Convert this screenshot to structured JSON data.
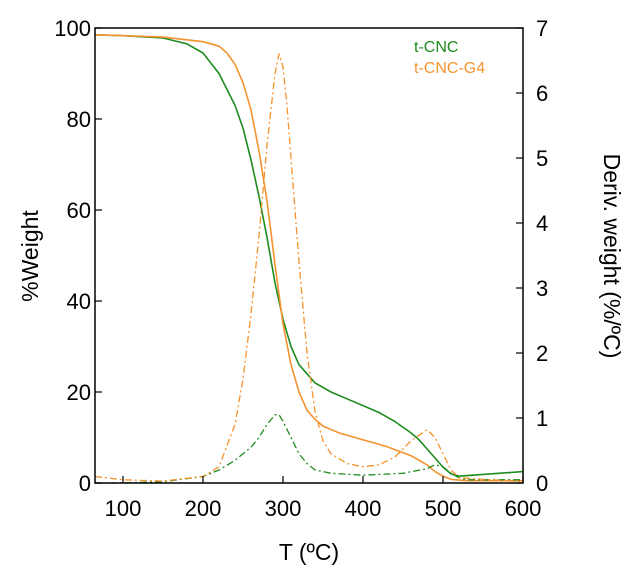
{
  "chart_data": {
    "type": "line",
    "xlabel": "T (ºC)",
    "ylabel": "%Weight",
    "y2label": "Deriv. weight (%/ºC)",
    "xlim": [
      65,
      600
    ],
    "ylim": [
      0,
      100
    ],
    "y2lim": [
      0,
      7
    ],
    "xticks": [
      100,
      200,
      300,
      400,
      500,
      600
    ],
    "yticks": [
      0,
      20,
      40,
      60,
      80,
      100
    ],
    "y2ticks": [
      0,
      1,
      2,
      3,
      4,
      5,
      6,
      7
    ],
    "grid": false,
    "legend": {
      "placement": "top-right",
      "entries": [
        {
          "label": "t-CNC",
          "color": "#1e8c1e"
        },
        {
          "label": "t-CNC-G4",
          "color": "#f5932e"
        }
      ]
    },
    "series": [
      {
        "name": "t-CNC",
        "axis": "left",
        "style": "solid",
        "color": "#1e8c1e",
        "x": [
          65,
          100,
          150,
          180,
          200,
          220,
          240,
          250,
          260,
          270,
          280,
          290,
          300,
          310,
          320,
          330,
          340,
          360,
          380,
          400,
          420,
          440,
          460,
          470,
          480,
          490,
          500,
          510,
          520,
          600
        ],
        "y": [
          98.5,
          98.3,
          97.8,
          96.5,
          94.5,
          90,
          83,
          78,
          71,
          63,
          54,
          44,
          36,
          30,
          26,
          24,
          22,
          20,
          18.5,
          17,
          15.5,
          13.5,
          11,
          9.5,
          7.5,
          5.5,
          3.5,
          2,
          1.5,
          2.5
        ]
      },
      {
        "name": "t-CNC-G4",
        "axis": "left",
        "style": "solid",
        "color": "#f5932e",
        "x": [
          65,
          100,
          150,
          200,
          220,
          230,
          240,
          250,
          260,
          270,
          280,
          290,
          300,
          310,
          320,
          330,
          340,
          350,
          370,
          400,
          430,
          460,
          480,
          490,
          500,
          510,
          530,
          600
        ],
        "y": [
          98.5,
          98.3,
          98,
          97,
          96,
          94.5,
          92,
          88,
          82,
          73,
          62,
          48,
          35,
          26,
          20,
          16,
          14,
          12.5,
          11,
          9.5,
          8,
          6,
          4,
          2.5,
          1.5,
          0.8,
          0.5,
          0.5
        ]
      },
      {
        "name": "t-CNC",
        "axis": "right",
        "style": "dash-dot",
        "color": "#1e8c1e",
        "x": [
          65,
          100,
          150,
          200,
          220,
          240,
          260,
          270,
          280,
          290,
          295,
          300,
          310,
          320,
          330,
          340,
          360,
          400,
          450,
          480,
          490,
          500,
          510,
          520,
          530,
          600
        ],
        "y": [
          0.0,
          0.0,
          0.02,
          0.1,
          0.2,
          0.35,
          0.55,
          0.7,
          0.9,
          1.05,
          1.05,
          0.95,
          0.7,
          0.45,
          0.3,
          0.2,
          0.15,
          0.12,
          0.15,
          0.22,
          0.28,
          0.25,
          0.15,
          0.08,
          0.05,
          0.05
        ]
      },
      {
        "name": "t-CNC-G4",
        "axis": "right",
        "style": "dash-dot",
        "color": "#f5932e",
        "x": [
          65,
          100,
          150,
          200,
          220,
          240,
          250,
          260,
          270,
          280,
          290,
          295,
          300,
          305,
          310,
          320,
          330,
          340,
          350,
          360,
          380,
          400,
          420,
          440,
          460,
          480,
          490,
          500,
          510,
          520,
          600
        ],
        "y": [
          0.1,
          0.05,
          0.03,
          0.1,
          0.25,
          0.9,
          1.6,
          2.6,
          3.8,
          5.2,
          6.3,
          6.6,
          6.4,
          5.8,
          5.0,
          3.4,
          2.0,
          1.1,
          0.65,
          0.45,
          0.3,
          0.25,
          0.28,
          0.4,
          0.65,
          0.82,
          0.7,
          0.45,
          0.2,
          0.08,
          0.02
        ]
      }
    ]
  }
}
